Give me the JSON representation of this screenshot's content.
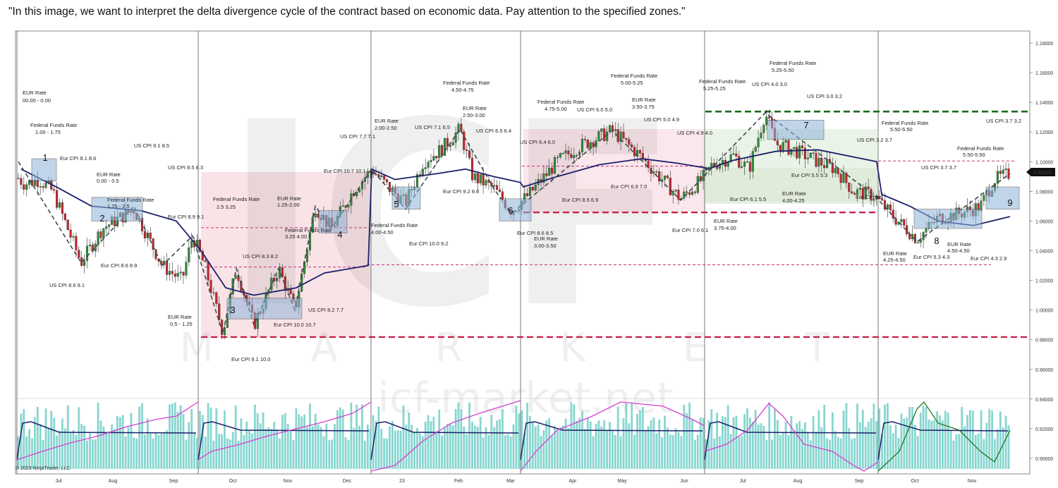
{
  "caption": "\"In this image, we want to interpret the delta divergence cycle of the contract based on economic data. Pay attention to the specified zones.\"",
  "watermark": {
    "logo": "ICF",
    "market": "M A R K E T",
    "url": "icf-market.net"
  },
  "copyright": "© 2023 NinjaTrader, LLC",
  "price_label": "1.09220",
  "chart_data": {
    "type": "candlestick",
    "y_axis": {
      "range": [
        0.89,
        1.19
      ],
      "ticks": [
        "1.18000",
        "1.16000",
        "1.14000",
        "1.12000",
        "1.10000",
        "1.08000",
        "1.06000",
        "1.04000",
        "1.02000",
        "1.00000",
        "0.98000",
        "0.96000",
        "0.94000",
        "0.92000",
        "0.90000"
      ],
      "side": "right"
    },
    "x_axis": {
      "labels": [
        "Jul",
        "Aug",
        "Sep",
        "Oct",
        "Nov",
        "Dec",
        "23",
        "Feb",
        "Mar",
        "Apr",
        "May",
        "Jun",
        "Jul",
        "Aug",
        "Sep",
        "Oct",
        "Nov"
      ]
    },
    "last_price": 1.0922,
    "price_path": [
      [
        0,
        1.1
      ],
      [
        35,
        1.085
      ],
      [
        55,
        1.088
      ],
      [
        75,
        1.08
      ],
      [
        115,
        1.032
      ],
      [
        145,
        1.055
      ],
      [
        190,
        1.068
      ],
      [
        230,
        1.03
      ],
      [
        258,
        1.02
      ],
      [
        273,
        1.05
      ],
      [
        290,
        1.03
      ],
      [
        316,
        0.985
      ],
      [
        335,
        1.028
      ],
      [
        360,
        0.99
      ],
      [
        395,
        1.028
      ],
      [
        418,
        1.0
      ],
      [
        447,
        1.07
      ],
      [
        470,
        1.055
      ],
      [
        500,
        1.08
      ],
      [
        527,
        1.095
      ],
      [
        550,
        1.083
      ],
      [
        575,
        1.072
      ],
      [
        600,
        1.1
      ],
      [
        625,
        1.108
      ],
      [
        652,
        1.122
      ],
      [
        670,
        1.09
      ],
      [
        700,
        1.082
      ],
      [
        725,
        1.067
      ],
      [
        750,
        1.078
      ],
      [
        790,
        1.1
      ],
      [
        820,
        1.11
      ],
      [
        868,
        1.121
      ],
      [
        905,
        1.105
      ],
      [
        935,
        1.09
      ],
      [
        965,
        1.075
      ],
      [
        995,
        1.088
      ],
      [
        1010,
        1.098
      ],
      [
        1040,
        1.104
      ],
      [
        1062,
        1.095
      ],
      [
        1085,
        1.133
      ],
      [
        1100,
        1.112
      ],
      [
        1125,
        1.108
      ],
      [
        1160,
        1.1
      ],
      [
        1185,
        1.095
      ],
      [
        1210,
        1.08
      ],
      [
        1240,
        1.077
      ],
      [
        1262,
        1.065
      ],
      [
        1300,
        1.048
      ],
      [
        1330,
        1.062
      ],
      [
        1360,
        1.065
      ],
      [
        1390,
        1.07
      ],
      [
        1410,
        1.088
      ],
      [
        1432,
        1.092
      ]
    ],
    "moving_average": [
      [
        30,
        1.095
      ],
      [
        80,
        1.083
      ],
      [
        130,
        1.07
      ],
      [
        200,
        1.067
      ],
      [
        250,
        1.06
      ],
      [
        285,
        1.04
      ],
      [
        320,
        1.015
      ],
      [
        360,
        1.01
      ],
      [
        420,
        1.015
      ],
      [
        460,
        1.025
      ],
      [
        522,
        1.03
      ],
      [
        527,
        1.095
      ],
      [
        560,
        1.088
      ],
      [
        620,
        1.092
      ],
      [
        660,
        1.095
      ],
      [
        700,
        1.09
      ],
      [
        738,
        1.086
      ],
      [
        742,
        1.083
      ],
      [
        790,
        1.09
      ],
      [
        850,
        1.098
      ],
      [
        910,
        1.102
      ],
      [
        960,
        1.099
      ],
      [
        998,
        1.096
      ],
      [
        1003,
        1.095
      ],
      [
        1040,
        1.101
      ],
      [
        1100,
        1.107
      ],
      [
        1160,
        1.108
      ],
      [
        1243,
        1.1
      ],
      [
        1250,
        1.078
      ],
      [
        1290,
        1.07
      ],
      [
        1330,
        1.06
      ],
      [
        1380,
        1.057
      ],
      [
        1432,
        1.063
      ]
    ],
    "session_separators": [
      "Jul",
      "Oct",
      "Dec",
      "Mar",
      "Jun",
      "Sep"
    ],
    "zones": [
      {
        "label": "1",
        "top": 1.102,
        "bottom": 1.087
      },
      {
        "label": "2",
        "top": 1.076,
        "bottom": 1.06
      },
      {
        "label": "3",
        "top": 1.008,
        "bottom": 0.994
      },
      {
        "label": "4",
        "top": 1.067,
        "bottom": 1.052
      },
      {
        "label": "5",
        "top": 1.083,
        "bottom": 1.068
      },
      {
        "label": "6",
        "top": 1.075,
        "bottom": 1.06
      },
      {
        "label": "7",
        "top": 1.128,
        "bottom": 1.115
      },
      {
        "label": "8",
        "top": 1.068,
        "bottom": 1.055
      },
      {
        "label": "9",
        "top": 1.083,
        "bottom": 1.068
      }
    ],
    "horizontal_levels": [
      {
        "value": 1.1338,
        "style": "green-dashed"
      },
      {
        "value": 0.9818,
        "style": "red-dashed"
      },
      {
        "value": 1.0658,
        "style": "red-dashed"
      },
      {
        "value": 1.097,
        "style": "magenta-dotted"
      },
      {
        "value": 1.0555,
        "style": "magenta-dotted"
      },
      {
        "value": 1.0305,
        "style": "magenta-dotted"
      },
      {
        "value": 1.1005,
        "style": "magenta-dotted"
      },
      {
        "value": 1.029,
        "style": "magenta-dotted"
      }
    ],
    "annotations": [
      "EUR Rate",
      "00.00 - 0.00",
      "Federal Funds Rate",
      "1.00 - 1.75",
      "Eur CPI 8.1  8.6",
      "EUR Rate",
      "0.00 - 0.5",
      "Federal Funds Rate",
      "1.75 - 2.5",
      "US CPI 9.1 8.5",
      "US CPI 8.5  8.3",
      "Eur CPI 8.9  9.1",
      "US CPI 8.6  9.1",
      "Eur CPI 8.6  8.9",
      "EUR Rate",
      "0.5 - 1.25",
      "Federal Funds Rate",
      "2.5  3.25",
      "EUR Rate",
      "1.25-2.00",
      "Federal Funds Rate",
      "3.25  4.00",
      "US CPI 8.3  8.2",
      "US CPI 8.2  7.7",
      "Eur CPI 10.0  10.7",
      "Eur CPI 9.1  10.0",
      "Eur CPI 10.7  10.1",
      "US CPI 7.7  7.1",
      "EUR Rate",
      "2.00-2.50",
      "Federal Funds Rate",
      "4.00-4.50",
      "Eur CPI 10.0  9.2",
      "US CPI 7.1  6.5",
      "Federal Funds Rate",
      "4.50-4.75",
      "EUR Rate",
      "2.50-3.00",
      "US CPI 6.5  6.4",
      "Eur CPI 9.2  8.6",
      "Eur CPI 8.6  8.5",
      "EUR Rate",
      "3.00-3.50",
      "US CPI 6.4  6.0",
      "Federal Funds Rate",
      "4.75-5.00",
      "US CPI 6.0  5.0",
      "Federal Funds Rate",
      "5.00-5.25",
      "EUR Rate",
      "3.50-3.75",
      "Eur CPI 8.5  6.9",
      "Eur CPI 6.9  7.0",
      "US CPI 5.0  4.9",
      "US CPI 4.9  4.0",
      "Federal Funds Rate",
      "5.25-5.25",
      "Eur CPI 7.0  6.1",
      "EUR Rate",
      "3.75-4.00",
      "Eur CPI 6.1  5.5",
      "Federal Funds Rate",
      "5.25-5.50",
      "US CPI 4.0  3.0",
      "US CPI 3.0  3.2",
      "Eur CPI 5.5  5.3",
      "EUR Rate",
      "4.00-4.25",
      "Eur CPI 5.3",
      "US CPI 3.2  3.7",
      "Federal Funds Rate",
      "5.50-5.50",
      "EUR Rate",
      "4.25-4.50",
      "Eur CPI  5.3  4.3",
      "US CPI 3.7  3.7",
      "Federal Funds Rate",
      "5.50-5.50",
      "EUR Rate",
      "4.50-4.50",
      "US CPI 3.7  3.2",
      "Eur CPI 4.3  2.9"
    ],
    "indicator": {
      "type": "delta divergence",
      "series": [
        "volume histogram",
        "cumulative delta",
        "average"
      ]
    }
  }
}
